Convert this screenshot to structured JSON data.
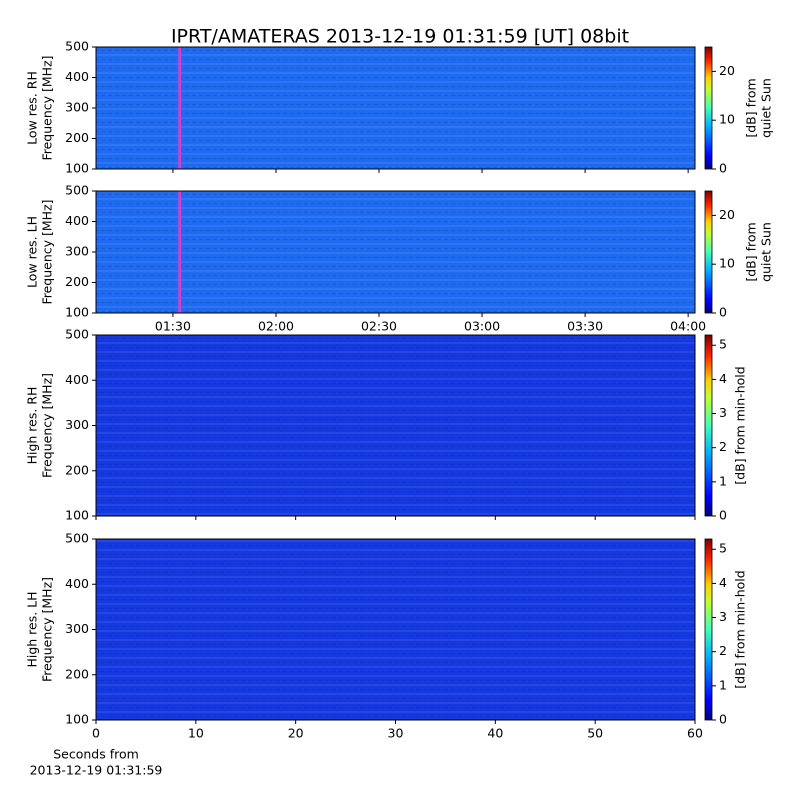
{
  "chart_data": [
    {
      "type": "heatmap",
      "title": "IPRT/AMATERAS 2013-12-19 01:31:59 [UT]   08bit",
      "ylabel": [
        "Low res. RH",
        "Frequency [MHz]"
      ],
      "ylim": [
        100,
        500
      ],
      "yticks": [
        100,
        200,
        300,
        400,
        500
      ],
      "xlim": [
        67.6,
        242
      ],
      "color": "#1e6af0",
      "cursor_x": 91.98,
      "cursor_color": "#d040d0",
      "clabel": [
        "[dB] from",
        "quiet Sun"
      ],
      "clim": [
        0,
        25
      ],
      "cticks": [
        0,
        10,
        20
      ]
    },
    {
      "type": "heatmap",
      "ylabel": [
        "Low res. LH",
        "Frequency [MHz]"
      ],
      "ylim": [
        100,
        500
      ],
      "yticks": [
        100,
        200,
        300,
        400,
        500
      ],
      "xlim": [
        67.6,
        242
      ],
      "xticks": [
        {
          "value": 90,
          "label": "01:30"
        },
        {
          "value": 120,
          "label": "02:00"
        },
        {
          "value": 150,
          "label": "02:30"
        },
        {
          "value": 180,
          "label": "03:00"
        },
        {
          "value": 210,
          "label": "03:30"
        },
        {
          "value": 240,
          "label": "04:00"
        }
      ],
      "color": "#1e6af0",
      "cursor_x": 91.98,
      "cursor_color": "#d040d0",
      "clabel": [
        "[dB] from",
        "quiet Sun"
      ],
      "clim": [
        0,
        25
      ],
      "cticks": [
        0,
        10,
        20
      ]
    },
    {
      "type": "heatmap",
      "ylabel": [
        "High res. RH",
        "Frequency [MHz]"
      ],
      "ylim": [
        100,
        500
      ],
      "yticks": [
        100,
        200,
        300,
        400,
        500
      ],
      "xlim": [
        0,
        60
      ],
      "color": "#1638e0",
      "xlabel": [
        "Seconds from",
        "2013-12-19 01:31:59"
      ],
      "clabel": [
        "[dB] from min-hold"
      ],
      "clim": [
        0,
        5.3
      ],
      "cticks": [
        0,
        1,
        2,
        3,
        4,
        5
      ]
    },
    {
      "type": "heatmap",
      "ylabel": [
        "High res. LH",
        "Frequency [MHz]"
      ],
      "ylim": [
        100,
        500
      ],
      "yticks": [
        100,
        200,
        300,
        400,
        500
      ],
      "xlim": [
        0,
        60
      ],
      "xticks": [
        0,
        10,
        20,
        30,
        40,
        50,
        60
      ],
      "color": "#1638e0",
      "clabel": [
        "[dB] from min-hold"
      ],
      "clim": [
        0,
        5.3
      ],
      "cticks": [
        0,
        1,
        2,
        3,
        4,
        5
      ]
    }
  ]
}
